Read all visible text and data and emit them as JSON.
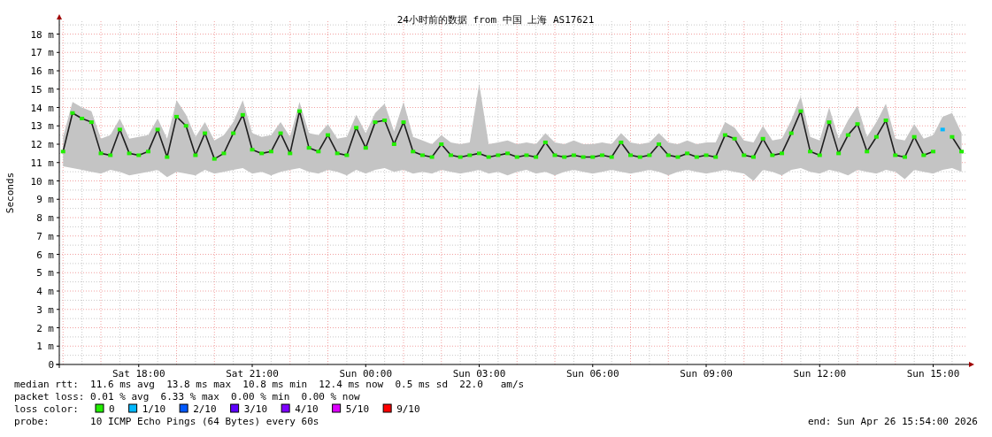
{
  "chart_data": {
    "type": "line",
    "title": "24小时前的数据 from 中国 上海 AS17621",
    "ylabel": "Seconds",
    "x": [
      "2026-04-25T16:00",
      "2026-04-25T16:15",
      "2026-04-25T16:30",
      "2026-04-25T16:45",
      "2026-04-25T17:00",
      "2026-04-25T17:15",
      "2026-04-25T17:30",
      "2026-04-25T17:45",
      "2026-04-25T18:00",
      "2026-04-25T18:15",
      "2026-04-25T18:30",
      "2026-04-25T18:45",
      "2026-04-25T19:00",
      "2026-04-25T19:15",
      "2026-04-25T19:30",
      "2026-04-25T19:45",
      "2026-04-25T20:00",
      "2026-04-25T20:15",
      "2026-04-25T20:30",
      "2026-04-25T20:45",
      "2026-04-25T21:00",
      "2026-04-25T21:15",
      "2026-04-25T21:30",
      "2026-04-25T21:45",
      "2026-04-25T22:00",
      "2026-04-25T22:15",
      "2026-04-25T22:30",
      "2026-04-25T22:45",
      "2026-04-25T23:00",
      "2026-04-25T23:15",
      "2026-04-25T23:30",
      "2026-04-25T23:45",
      "2026-04-26T00:00",
      "2026-04-26T00:15",
      "2026-04-26T00:30",
      "2026-04-26T00:45",
      "2026-04-26T01:00",
      "2026-04-26T01:15",
      "2026-04-26T01:30",
      "2026-04-26T01:45",
      "2026-04-26T02:00",
      "2026-04-26T02:15",
      "2026-04-26T02:30",
      "2026-04-26T02:45",
      "2026-04-26T03:00",
      "2026-04-26T03:15",
      "2026-04-26T03:30",
      "2026-04-26T03:45",
      "2026-04-26T04:00",
      "2026-04-26T04:15",
      "2026-04-26T04:30",
      "2026-04-26T04:45",
      "2026-04-26T05:00",
      "2026-04-26T05:15",
      "2026-04-26T05:30",
      "2026-04-26T05:45",
      "2026-04-26T06:00",
      "2026-04-26T06:15",
      "2026-04-26T06:30",
      "2026-04-26T06:45",
      "2026-04-26T07:00",
      "2026-04-26T07:15",
      "2026-04-26T07:30",
      "2026-04-26T07:45",
      "2026-04-26T08:00",
      "2026-04-26T08:15",
      "2026-04-26T08:30",
      "2026-04-26T08:45",
      "2026-04-26T09:00",
      "2026-04-26T09:15",
      "2026-04-26T09:30",
      "2026-04-26T09:45",
      "2026-04-26T10:00",
      "2026-04-26T10:15",
      "2026-04-26T10:30",
      "2026-04-26T10:45",
      "2026-04-26T11:00",
      "2026-04-26T11:15",
      "2026-04-26T11:30",
      "2026-04-26T11:45",
      "2026-04-26T12:00",
      "2026-04-26T12:15",
      "2026-04-26T12:30",
      "2026-04-26T12:45",
      "2026-04-26T13:00",
      "2026-04-26T13:15",
      "2026-04-26T13:30",
      "2026-04-26T13:45",
      "2026-04-26T14:00",
      "2026-04-26T14:15",
      "2026-04-26T14:30",
      "2026-04-26T14:45",
      "2026-04-26T15:00",
      "2026-04-26T15:15",
      "2026-04-26T15:30",
      "2026-04-26T15:45"
    ],
    "xlim": [
      "2026-04-25T15:54",
      "2026-04-26T15:54"
    ],
    "xticks": [
      {
        "value": "2026-04-25T18:00",
        "label": "Sat 18:00"
      },
      {
        "value": "2026-04-25T21:00",
        "label": "Sat 21:00"
      },
      {
        "value": "2026-04-26T00:00",
        "label": "Sun 00:00"
      },
      {
        "value": "2026-04-26T03:00",
        "label": "Sun 03:00"
      },
      {
        "value": "2026-04-26T06:00",
        "label": "Sun 06:00"
      },
      {
        "value": "2026-04-26T09:00",
        "label": "Sun 09:00"
      },
      {
        "value": "2026-04-26T12:00",
        "label": "Sun 12:00"
      },
      {
        "value": "2026-04-26T15:00",
        "label": "Sun 15:00"
      }
    ],
    "ylim": [
      0,
      18.7
    ],
    "yticks": [
      0,
      {
        "value": 1,
        "label": "1 m"
      },
      {
        "value": 2,
        "label": "2 m"
      },
      {
        "value": 3,
        "label": "3 m"
      },
      {
        "value": 4,
        "label": "4 m"
      },
      {
        "value": 5,
        "label": "5 m"
      },
      {
        "value": 6,
        "label": "6 m"
      },
      {
        "value": 7,
        "label": "7 m"
      },
      {
        "value": 8,
        "label": "8 m"
      },
      {
        "value": 9,
        "label": "9 m"
      },
      {
        "value": 10,
        "label": "10 m"
      },
      {
        "value": 11,
        "label": "11 m"
      },
      {
        "value": 12,
        "label": "12 m"
      },
      {
        "value": 13,
        "label": "13 m"
      },
      {
        "value": 14,
        "label": "14 m"
      },
      {
        "value": 15,
        "label": "15 m"
      },
      {
        "value": 16,
        "label": "16 m"
      },
      {
        "value": 17,
        "label": "17 m"
      },
      {
        "value": 18,
        "label": "18 m"
      }
    ],
    "grid": true,
    "marker": "square",
    "legend": "bottom",
    "legend_title": "loss color:",
    "series": [
      {
        "name": "0",
        "color": "#22ee00",
        "values": [
          11.6,
          13.7,
          13.4,
          13.2,
          11.5,
          11.4,
          12.8,
          11.5,
          11.4,
          11.6,
          12.8,
          11.3,
          13.5,
          13.0,
          11.4,
          12.6,
          11.2,
          11.5,
          12.6,
          13.6,
          11.7,
          11.5,
          11.6,
          12.6,
          11.5,
          13.8,
          11.8,
          11.6,
          12.5,
          11.5,
          11.4,
          12.9,
          11.8,
          13.2,
          13.3,
          12.0,
          13.2,
          11.6,
          11.4,
          11.3,
          12.0,
          11.4,
          11.3,
          11.4,
          11.5,
          11.3,
          11.4,
          11.5,
          11.3,
          11.4,
          11.3,
          12.1,
          11.4,
          11.3,
          11.4,
          11.3,
          11.3,
          11.4,
          11.3,
          12.1,
          11.4,
          11.3,
          11.4,
          12.0,
          11.4,
          11.3,
          11.5,
          11.3,
          11.4,
          11.3,
          12.5,
          12.3,
          11.4,
          11.3,
          12.3,
          11.4,
          11.5,
          12.6,
          13.8,
          11.6,
          11.4,
          13.2,
          11.5,
          12.5,
          13.1,
          11.6,
          12.4,
          13.3,
          11.4,
          11.3,
          12.4,
          11.4,
          11.6,
          null,
          12.4,
          11.6
        ],
        "lower": [
          10.8,
          10.7,
          10.6,
          10.5,
          10.4,
          10.6,
          10.5,
          10.3,
          10.4,
          10.5,
          10.6,
          10.2,
          10.5,
          10.4,
          10.3,
          10.6,
          10.4,
          10.5,
          10.6,
          10.7,
          10.4,
          10.5,
          10.3,
          10.5,
          10.6,
          10.7,
          10.5,
          10.4,
          10.6,
          10.5,
          10.3,
          10.6,
          10.4,
          10.6,
          10.7,
          10.5,
          10.6,
          10.4,
          10.5,
          10.4,
          10.6,
          10.5,
          10.4,
          10.5,
          10.6,
          10.4,
          10.5,
          10.3,
          10.5,
          10.6,
          10.4,
          10.5,
          10.3,
          10.5,
          10.6,
          10.5,
          10.4,
          10.5,
          10.6,
          10.5,
          10.4,
          10.5,
          10.6,
          10.5,
          10.3,
          10.5,
          10.6,
          10.5,
          10.4,
          10.5,
          10.6,
          10.5,
          10.4,
          10.0,
          10.6,
          10.5,
          10.3,
          10.6,
          10.7,
          10.5,
          10.4,
          10.6,
          10.5,
          10.3,
          10.6,
          10.5,
          10.4,
          10.6,
          10.5,
          10.1,
          10.6,
          10.5,
          10.4,
          10.6,
          10.7,
          10.5
        ],
        "upper": [
          12.4,
          14.3,
          14.0,
          13.8,
          12.3,
          12.5,
          13.4,
          12.3,
          12.4,
          12.5,
          13.4,
          12.3,
          14.4,
          13.6,
          12.4,
          13.2,
          12.2,
          12.5,
          13.2,
          14.4,
          12.6,
          12.4,
          12.5,
          13.2,
          12.4,
          14.3,
          12.6,
          12.5,
          13.1,
          12.3,
          12.4,
          13.6,
          12.6,
          13.7,
          14.2,
          12.7,
          14.3,
          12.4,
          12.2,
          12.0,
          12.5,
          12.1,
          12.0,
          12.1,
          15.3,
          12.0,
          12.1,
          12.2,
          12.0,
          12.1,
          12.0,
          12.6,
          12.1,
          12.0,
          12.2,
          12.0,
          12.0,
          12.1,
          12.0,
          12.6,
          12.1,
          12.0,
          12.1,
          12.6,
          12.1,
          12.0,
          12.2,
          12.0,
          12.1,
          12.1,
          13.2,
          12.9,
          12.2,
          12.1,
          13.0,
          12.2,
          12.3,
          13.3,
          14.6,
          12.4,
          12.2,
          14.0,
          12.3,
          13.3,
          14.1,
          12.4,
          13.2,
          14.2,
          12.3,
          12.2,
          13.1,
          12.3,
          12.5,
          13.5,
          13.7,
          12.6
        ]
      },
      {
        "name": "1/10",
        "color": "#00b8ff",
        "x": [
          "2026-04-26T15:15"
        ],
        "values": [
          12.8
        ]
      },
      {
        "name": "2/10",
        "color": "#0059ff",
        "values": [
          null,
          null,
          null,
          null,
          null,
          null,
          null,
          null,
          null,
          null,
          null,
          null,
          null,
          null,
          null,
          null,
          null,
          null,
          null,
          null,
          null,
          null,
          null,
          null,
          null,
          null,
          null,
          null,
          null,
          null,
          null,
          null,
          null,
          null,
          null,
          null,
          null,
          null,
          null,
          null,
          null,
          null,
          null,
          null,
          null,
          null,
          null,
          null,
          null,
          null,
          null,
          null,
          null,
          null,
          null,
          null,
          null,
          null,
          null,
          null,
          null,
          null,
          null,
          null,
          null,
          null,
          null,
          null,
          null,
          null,
          null,
          null,
          null,
          null,
          null,
          null,
          null,
          null,
          null,
          null,
          null,
          null,
          null,
          null,
          null,
          null,
          null,
          null,
          null,
          null,
          null,
          null,
          null,
          null,
          null,
          null
        ]
      },
      {
        "name": "3/10",
        "color": "#5e00ff",
        "values": [
          null,
          null,
          null,
          null,
          null,
          null,
          null,
          null,
          null,
          null,
          null,
          null,
          null,
          null,
          null,
          null,
          null,
          null,
          null,
          null,
          null,
          null,
          null,
          null,
          null,
          null,
          null,
          null,
          null,
          null,
          null,
          null,
          null,
          null,
          null,
          null,
          null,
          null,
          null,
          null,
          null,
          null,
          null,
          null,
          null,
          null,
          null,
          null,
          null,
          null,
          null,
          null,
          null,
          null,
          null,
          null,
          null,
          null,
          null,
          null,
          null,
          null,
          null,
          null,
          null,
          null,
          null,
          null,
          null,
          null,
          null,
          null,
          null,
          null,
          null,
          null,
          null,
          null,
          null,
          null,
          null,
          null,
          null,
          null,
          null,
          null,
          null,
          null,
          null,
          null,
          null,
          null,
          null,
          null,
          null,
          null
        ]
      },
      {
        "name": "4/10",
        "color": "#7e00ff",
        "values": [
          null,
          null,
          null,
          null,
          null,
          null,
          null,
          null,
          null,
          null,
          null,
          null,
          null,
          null,
          null,
          null,
          null,
          null,
          null,
          null,
          null,
          null,
          null,
          null,
          null,
          null,
          null,
          null,
          null,
          null,
          null,
          null,
          null,
          null,
          null,
          null,
          null,
          null,
          null,
          null,
          null,
          null,
          null,
          null,
          null,
          null,
          null,
          null,
          null,
          null,
          null,
          null,
          null,
          null,
          null,
          null,
          null,
          null,
          null,
          null,
          null,
          null,
          null,
          null,
          null,
          null,
          null,
          null,
          null,
          null,
          null,
          null,
          null,
          null,
          null,
          null,
          null,
          null,
          null,
          null,
          null,
          null,
          null,
          null,
          null,
          null,
          null,
          null,
          null,
          null,
          null,
          null,
          null,
          null,
          null,
          null
        ]
      },
      {
        "name": "5/10",
        "color": "#dd00ff",
        "values": [
          null,
          null,
          null,
          null,
          null,
          null,
          null,
          null,
          null,
          null,
          null,
          null,
          null,
          null,
          null,
          null,
          null,
          null,
          null,
          null,
          null,
          null,
          null,
          null,
          null,
          null,
          null,
          null,
          null,
          null,
          null,
          null,
          null,
          null,
          null,
          null,
          null,
          null,
          null,
          null,
          null,
          null,
          null,
          null,
          null,
          null,
          null,
          null,
          null,
          null,
          null,
          null,
          null,
          null,
          null,
          null,
          null,
          null,
          null,
          null,
          null,
          null,
          null,
          null,
          null,
          null,
          null,
          null,
          null,
          null,
          null,
          null,
          null,
          null,
          null,
          null,
          null,
          null,
          null,
          null,
          null,
          null,
          null,
          null,
          null,
          null,
          null,
          null,
          null,
          null,
          null,
          null,
          null,
          null,
          null,
          null
        ]
      },
      {
        "name": "9/10",
        "color": "#ff0000",
        "values": [
          null,
          null,
          null,
          null,
          null,
          null,
          null,
          null,
          null,
          null,
          null,
          null,
          null,
          null,
          null,
          null,
          null,
          null,
          null,
          null,
          null,
          null,
          null,
          null,
          null,
          null,
          null,
          null,
          null,
          null,
          null,
          null,
          null,
          null,
          null,
          null,
          null,
          null,
          null,
          null,
          null,
          null,
          null,
          null,
          null,
          null,
          null,
          null,
          null,
          null,
          null,
          null,
          null,
          null,
          null,
          null,
          null,
          null,
          null,
          null,
          null,
          null,
          null,
          null,
          null,
          null,
          null,
          null,
          null,
          null,
          null,
          null,
          null,
          null,
          null,
          null,
          null,
          null,
          null,
          null,
          null,
          null,
          null,
          null,
          null,
          null,
          null,
          null,
          null,
          null,
          null,
          null,
          null,
          null,
          null,
          null
        ]
      }
    ],
    "annotations": [
      "median rtt:  11.6 ms avg  13.8 ms max  10.8 ms min  12.4 ms now  0.5 ms sd  22.0   am/s",
      "packet loss: 0.01 % avg  6.33 % max  0.00 % min  0.00 % now",
      "probe:       10 ICMP Echo Pings (64 Bytes) every 60s",
      "end: Sun Apr 26 15:54:00 2026"
    ]
  }
}
